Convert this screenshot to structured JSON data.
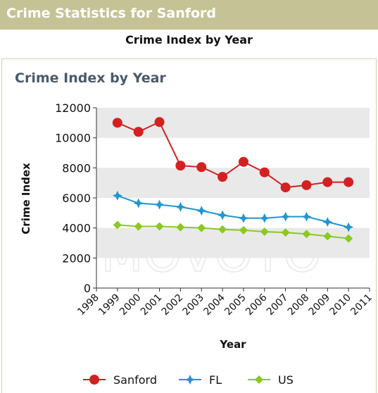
{
  "header": {
    "title": "Crime Statistics for Sanford"
  },
  "subheading": "Crime Index by Year",
  "watermark": "MOVOTO",
  "colors": {
    "header_bg": "#c5c395",
    "sanford": "#d42020",
    "fl": "#2196d3",
    "us": "#8ac922",
    "band": "#e9e9e9"
  },
  "chart_data": {
    "type": "line",
    "title": "Crime Index by Year",
    "xlabel": "Year",
    "ylabel": "Crime Index",
    "xlim": [
      1998,
      2011
    ],
    "ylim": [
      0,
      12000
    ],
    "x_ticks": [
      "1998",
      "1999",
      "2000",
      "2001",
      "2002",
      "2003",
      "2004",
      "2005",
      "2006",
      "2007",
      "2008",
      "2009",
      "2010",
      "2011"
    ],
    "y_ticks": [
      "0",
      "2000",
      "4000",
      "6000",
      "8000",
      "10000",
      "12000"
    ],
    "x": [
      1999,
      2000,
      2001,
      2002,
      2003,
      2004,
      2005,
      2006,
      2007,
      2008,
      2009,
      2010
    ],
    "series": [
      {
        "name": "Sanford",
        "color": "#d42020",
        "marker": "circle",
        "values": [
          11000,
          10400,
          11050,
          8150,
          8050,
          7400,
          8400,
          7700,
          6700,
          6850,
          7050,
          7050
        ]
      },
      {
        "name": "FL",
        "color": "#2196d3",
        "marker": "star",
        "values": [
          6150,
          5650,
          5550,
          5400,
          5150,
          4850,
          4650,
          4650,
          4750,
          4750,
          4400,
          4050
        ]
      },
      {
        "name": "US",
        "color": "#8ac922",
        "marker": "diamond",
        "values": [
          4200,
          4100,
          4100,
          4050,
          4000,
          3900,
          3850,
          3750,
          3700,
          3600,
          3450,
          3300
        ]
      }
    ],
    "grid": "alternating horizontal bands",
    "legend_position": "bottom"
  }
}
